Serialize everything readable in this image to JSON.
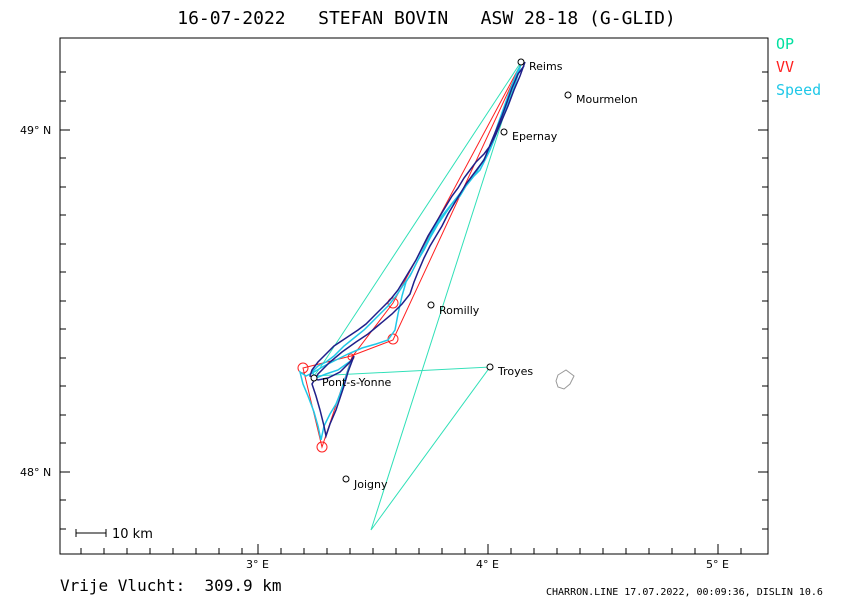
{
  "header": {
    "title": "16-07-2022   STEFAN BOVIN   ASW 28-18 (G-GLID)"
  },
  "legend": {
    "items": [
      {
        "label": "OP",
        "color": "#00e0a0"
      },
      {
        "label": "VV",
        "color": "#ff2020"
      },
      {
        "label": "Speed",
        "color": "#20c8e8"
      }
    ]
  },
  "footer": {
    "distance": "Vrije Vlucht:  309.9 km",
    "credits": "CHARRON.LINE 17.07.2022, 00:09:36, DISLIN 10.6"
  },
  "scale": {
    "label": "10 km"
  },
  "chart_data": {
    "type": "map",
    "lat_ticks": [
      {
        "value": 49.0,
        "label": "49° N"
      },
      {
        "value": 48.0,
        "label": "48° N"
      }
    ],
    "lon_ticks": [
      {
        "value": 3.0,
        "label": "3° E"
      },
      {
        "value": 4.0,
        "label": "4° E"
      },
      {
        "value": 5.0,
        "label": "5° E"
      }
    ],
    "lon_range": [
      2.15,
      5.22
    ],
    "lat_range": [
      47.75,
      49.27
    ],
    "places": [
      {
        "name": "Reims",
        "lon": 4.15,
        "lat": 49.24
      },
      {
        "name": "Mourmelon",
        "lon": 4.35,
        "lat": 49.11
      },
      {
        "name": "Epernay",
        "lon": 4.07,
        "lat": 49.0
      },
      {
        "name": "Romilly",
        "lon": 3.75,
        "lat": 48.49
      },
      {
        "name": "Troyes",
        "lon": 4.02,
        "lat": 48.31
      },
      {
        "name": "Pont-s-Yonne",
        "lon": 3.26,
        "lat": 48.28
      },
      {
        "name": "Joigny",
        "lon": 3.4,
        "lat": 47.98
      }
    ],
    "turnpoints": [
      {
        "lon": 3.59,
        "lat": 48.5
      },
      {
        "lon": 3.6,
        "lat": 48.39
      },
      {
        "lon": 3.21,
        "lat": 48.3
      },
      {
        "lon": 3.29,
        "lat": 48.08
      },
      {
        "lon": 3.41,
        "lat": 48.34
      }
    ]
  }
}
